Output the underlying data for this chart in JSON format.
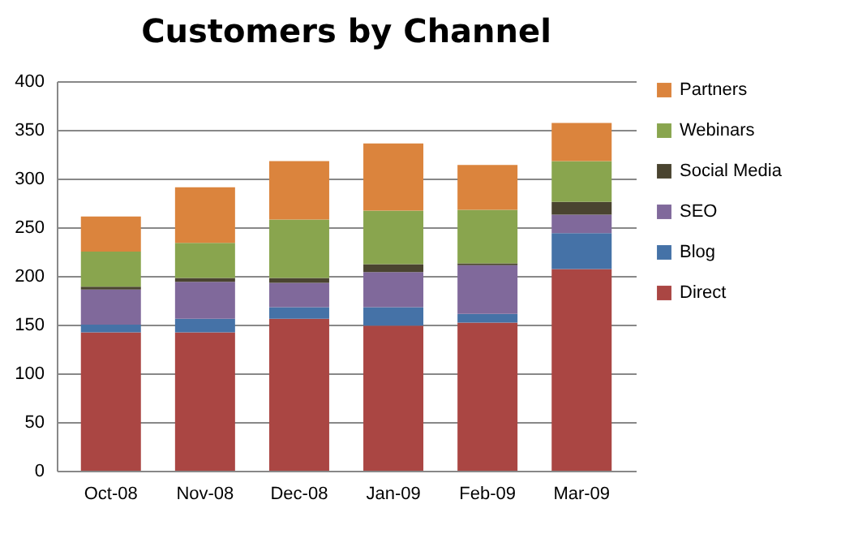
{
  "chart_data": {
    "type": "bar",
    "title": "Customers by Channel",
    "stacked": true,
    "categories": [
      "Oct-08",
      "Nov-08",
      "Dec-08",
      "Jan-09",
      "Feb-09",
      "Mar-09"
    ],
    "series": [
      {
        "name": "Direct",
        "color": "#aa4643",
        "values": [
          142,
          142,
          156,
          149,
          152,
          207
        ]
      },
      {
        "name": "Blog",
        "color": "#4572a7",
        "values": [
          8,
          14,
          12,
          19,
          9,
          37
        ]
      },
      {
        "name": "SEO",
        "color": "#80699b",
        "values": [
          36,
          38,
          25,
          36,
          50,
          19
        ]
      },
      {
        "name": "Social Media",
        "color": "#4a4430",
        "values": [
          3,
          4,
          5,
          8,
          2,
          13
        ]
      },
      {
        "name": "Webinars",
        "color": "#89a54e",
        "values": [
          36,
          36,
          60,
          55,
          55,
          42
        ]
      },
      {
        "name": "Partners",
        "color": "#db843d",
        "values": [
          36,
          57,
          60,
          69,
          46,
          39
        ]
      }
    ],
    "ylim": [
      0,
      400
    ],
    "yticks": [
      0,
      50,
      100,
      150,
      200,
      250,
      300,
      350,
      400
    ],
    "grid": "y",
    "legend": "right"
  }
}
